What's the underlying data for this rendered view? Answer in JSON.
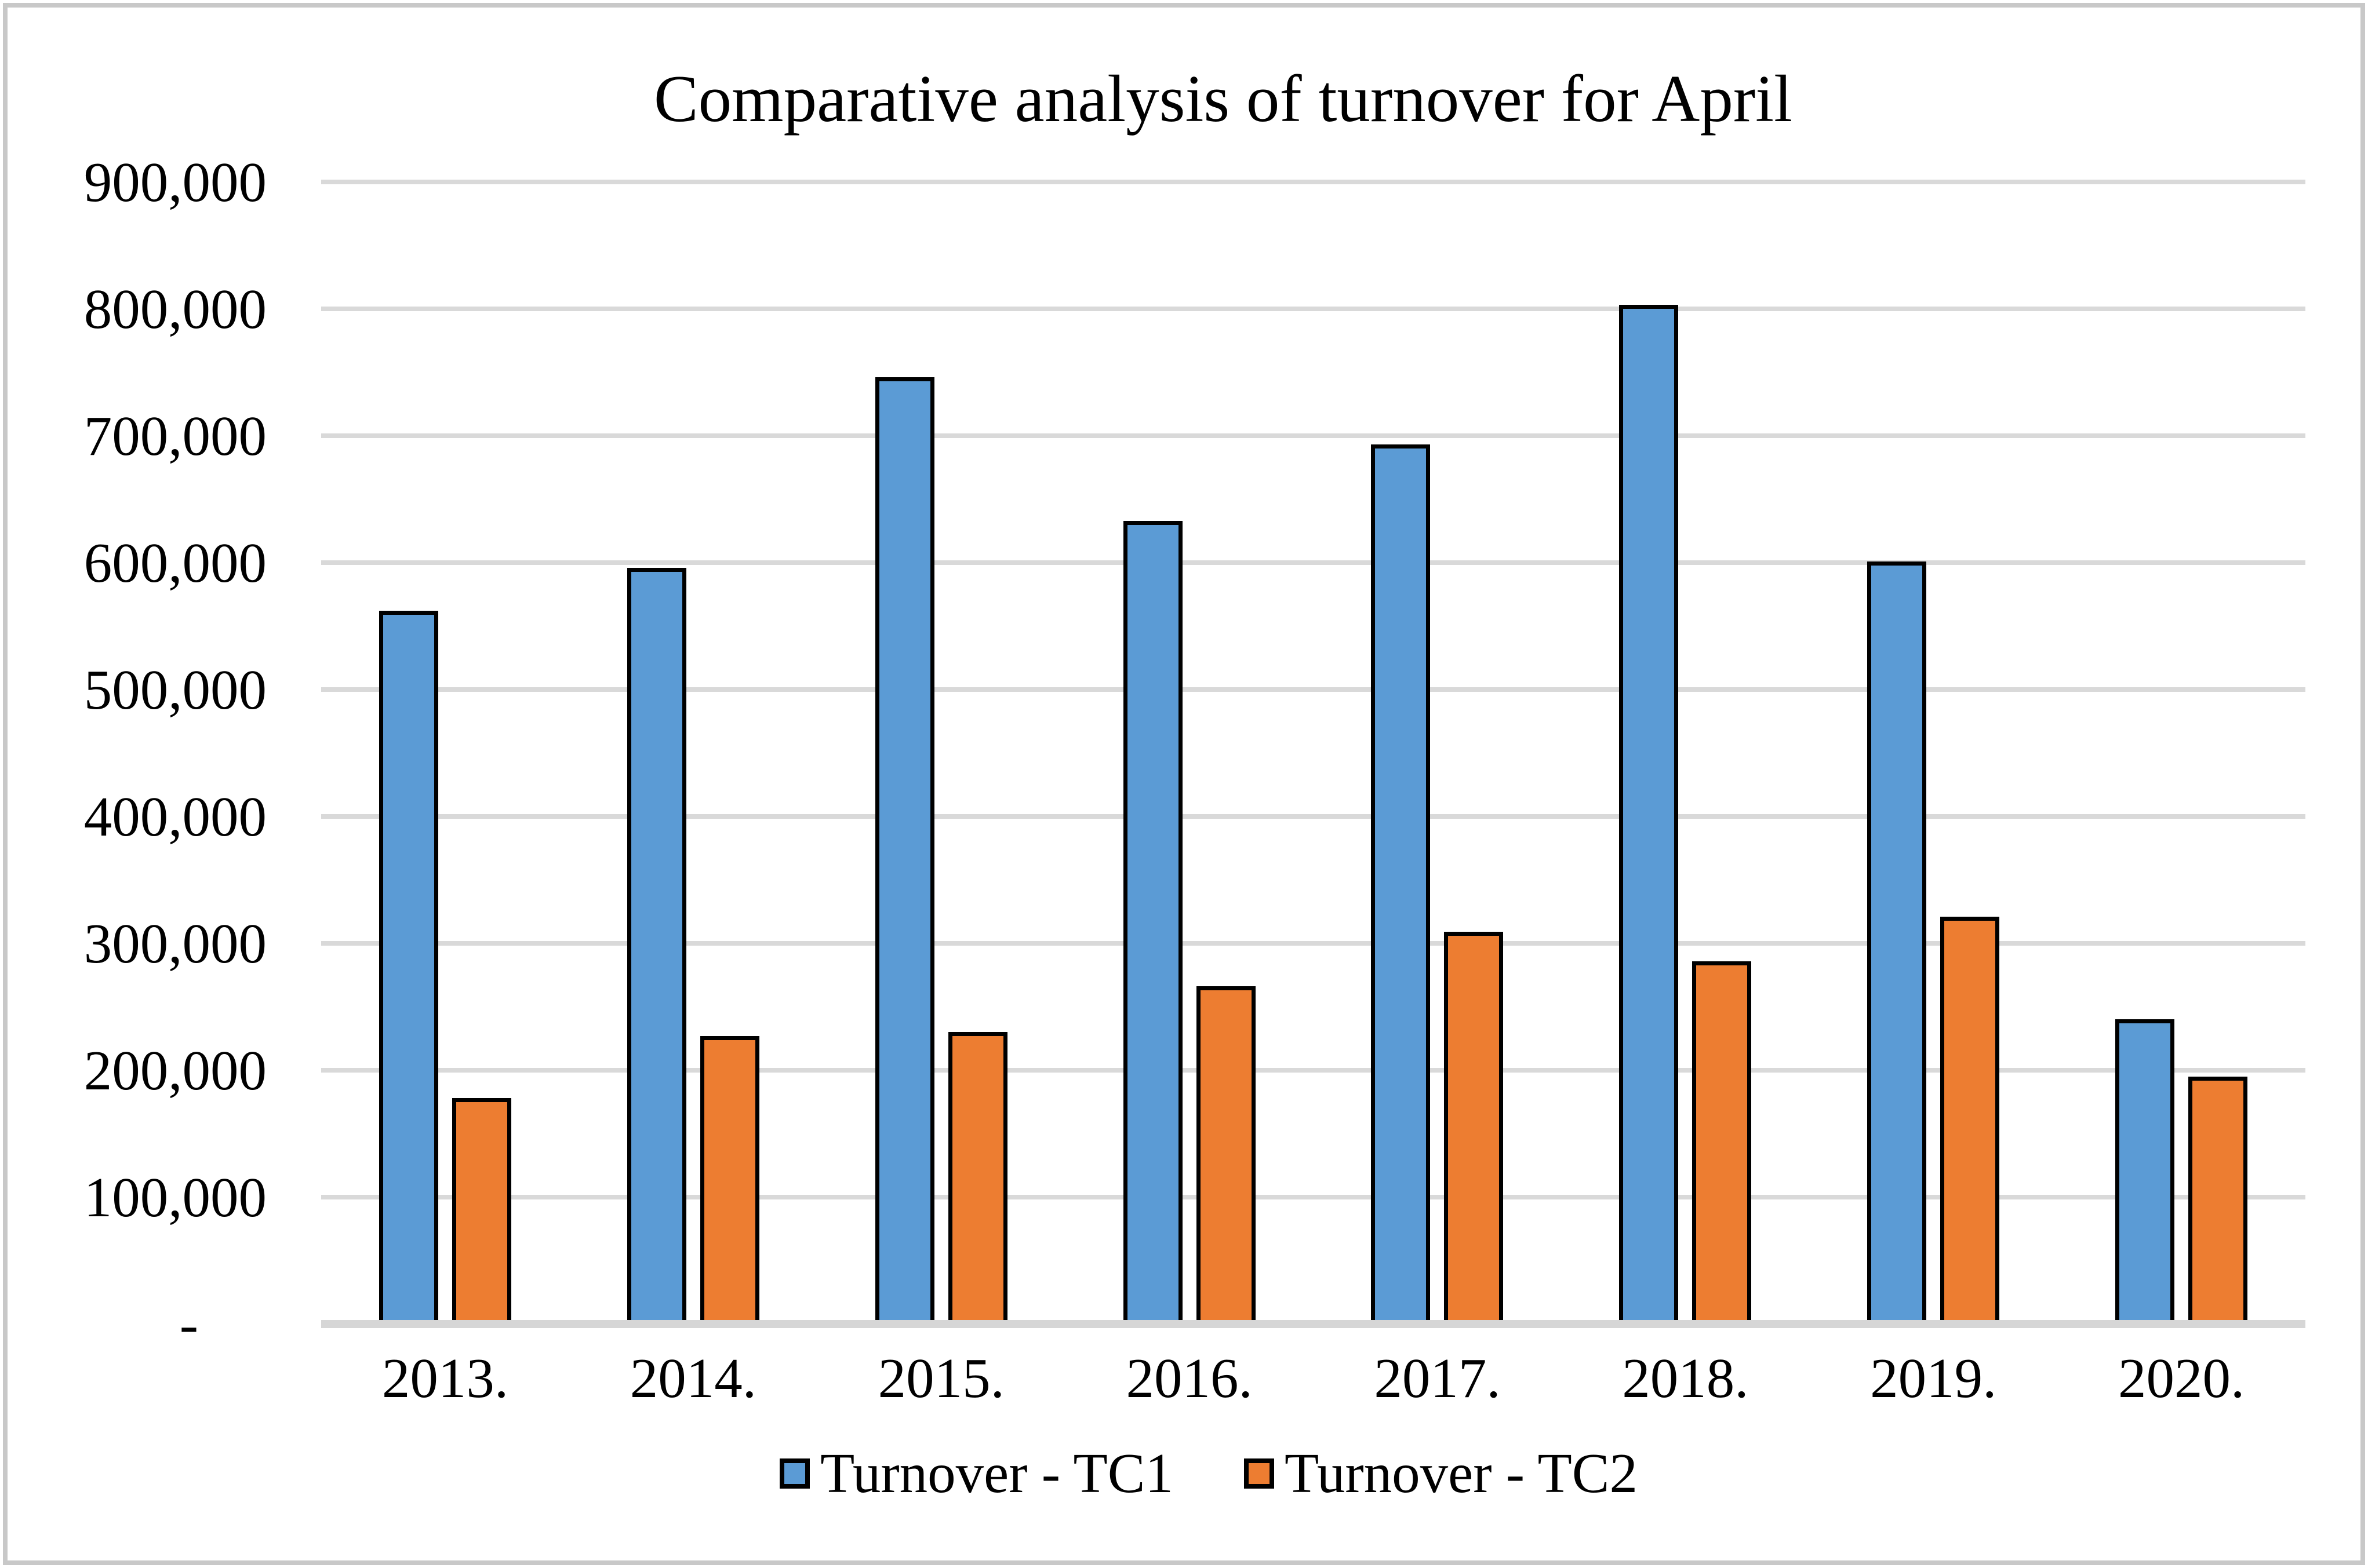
{
  "chart_data": {
    "type": "bar",
    "title": "Comparative analysis of turnover for April",
    "categories": [
      "2013.",
      "2014.",
      "2015.",
      "2016.",
      "2017.",
      "2018.",
      "2019.",
      "2020."
    ],
    "series": [
      {
        "name": "Turnover - TC1",
        "color": "#5b9bd5",
        "values": [
          562000,
          596000,
          746000,
          633000,
          693000,
          803000,
          601000,
          240000
        ]
      },
      {
        "name": "Turnover - TC2",
        "color": "#ed7d31",
        "values": [
          178000,
          227000,
          230000,
          266000,
          309000,
          286000,
          321000,
          195000
        ]
      }
    ],
    "ylabel": "",
    "xlabel": "",
    "ylim": [
      0,
      900000
    ],
    "ytick_step": 100000,
    "ytick_labels_top_to_bottom": [
      "900,000",
      "800,000",
      "700,000",
      "600,000",
      "500,000",
      "400,000",
      "300,000",
      "200,000",
      "100,000",
      "-"
    ],
    "grid": true,
    "legend_position": "bottom",
    "bar_outline_color": "#000000",
    "gridline_color": "#d9d9d9",
    "axis_line_color": "#d6d6d6",
    "background_color": "#ffffff",
    "border_color": "#c8c8c8"
  }
}
